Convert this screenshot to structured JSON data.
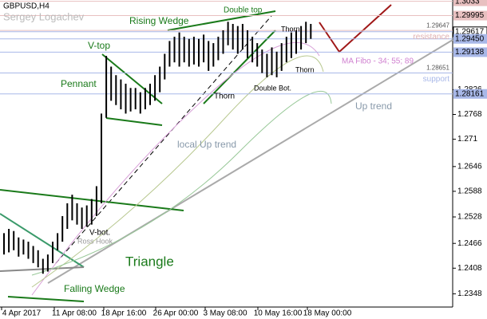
{
  "chart_data": {
    "type": "range_bars",
    "title": "GBPUSD,H4",
    "subtitle": "Sergey Logachev",
    "color": "#000000",
    "ylim": [
      1.2317,
      1.3036
    ],
    "yticks": [
      1.2826,
      1.2768,
      1.271,
      1.2646,
      1.2588,
      1.2528,
      1.2466,
      1.2408,
      1.2348
    ],
    "level_ticks": [
      {
        "value": 1.3033,
        "label": "1.3033"
      },
      {
        "value": 1.29995,
        "label": "1.29995"
      },
      {
        "value": 1.29617,
        "label": "1.29617"
      },
      {
        "value": 1.2945,
        "label": "1.29450"
      },
      {
        "value": 1.29138,
        "label": "1.29138"
      },
      {
        "value": 1.28161,
        "label": "1.28161"
      }
    ],
    "inner_levels": [
      {
        "value": 1.29647,
        "label": "1.29647",
        "name": "resistance"
      },
      {
        "value": 1.28651,
        "label": "1.28651",
        "name": "support"
      }
    ],
    "categories": [
      "4 Apr 2017",
      "11 Apr 08:00",
      "18 Apr 16:00",
      "26 Apr 00:00",
      "3 May 08:00",
      "10 May 16:00",
      "18 May 00:00"
    ],
    "high": [
      1.249,
      1.25,
      1.2495,
      1.248,
      1.2475,
      1.247,
      1.246,
      1.245,
      1.243,
      1.244,
      1.247,
      1.249,
      1.253,
      1.256,
      1.258,
      1.256,
      1.255,
      1.2555,
      1.257,
      1.26,
      1.277,
      1.2905,
      1.288,
      1.286,
      1.285,
      1.284,
      1.283,
      1.283,
      1.282,
      1.283,
      1.284,
      1.286,
      1.288,
      1.291,
      1.294,
      1.295,
      1.296,
      1.295,
      1.2945,
      1.295,
      1.2945,
      1.2955,
      1.294,
      1.2935,
      1.295,
      1.2965,
      1.2985,
      1.298,
      1.2975,
      1.298,
      1.2965,
      1.295,
      1.2935,
      1.292,
      1.291,
      1.2925,
      1.2915,
      1.2935,
      1.295,
      1.296,
      1.2965,
      1.2975,
      1.2985,
      1.298
    ],
    "low": [
      1.244,
      1.2445,
      1.245,
      1.2435,
      1.244,
      1.243,
      1.242,
      1.241,
      1.2395,
      1.24,
      1.242,
      1.245,
      1.247,
      1.25,
      1.252,
      1.251,
      1.25,
      1.2505,
      1.251,
      1.253,
      1.256,
      1.276,
      1.28,
      1.279,
      1.278,
      1.277,
      1.2775,
      1.278,
      1.277,
      1.278,
      1.279,
      1.28,
      1.282,
      1.285,
      1.288,
      1.289,
      1.288,
      1.289,
      1.288,
      1.2885,
      1.288,
      1.289,
      1.287,
      1.288,
      1.2895,
      1.291,
      1.293,
      1.292,
      1.291,
      1.292,
      1.29,
      1.289,
      1.288,
      1.2865,
      1.2855,
      1.286,
      1.2855,
      1.287,
      1.289,
      1.29,
      1.291,
      1.292,
      1.2935,
      1.2945
    ],
    "annotations": [
      "Rising Wedge",
      "Double top",
      "V-top",
      "Pennant",
      "Thorn",
      "Thorn",
      "Thorn",
      "Double Bot.",
      "MA Fibo - 34; 55; 89",
      "Up trend",
      "local  Up trend",
      "V-bot.",
      "Ross Hook",
      "Triangle",
      "Falling Wedge"
    ]
  }
}
